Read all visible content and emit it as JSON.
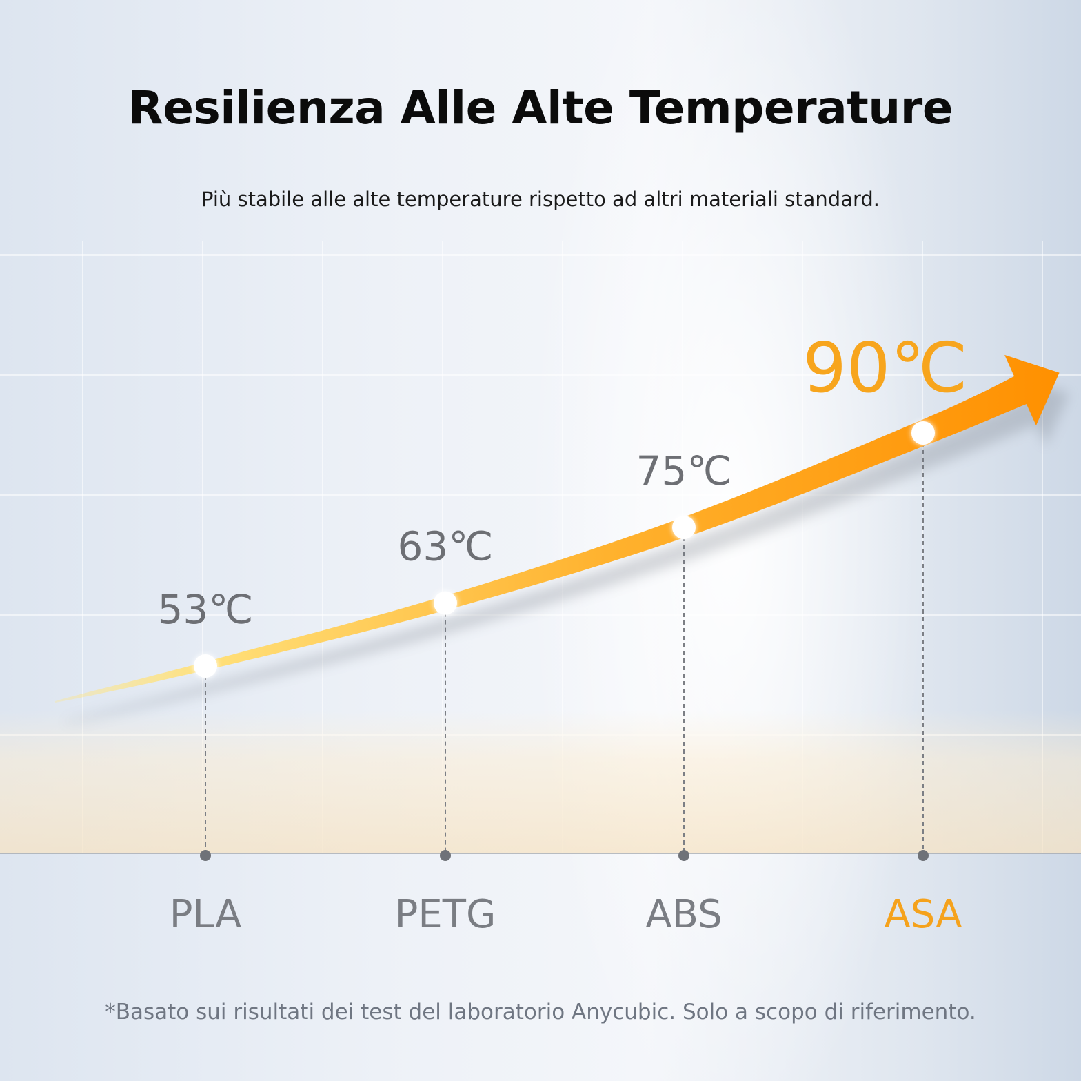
{
  "header": {
    "title": "Resilienza Alle Alte Temperature",
    "subtitle": "Più stabile alle alte temperature rispetto ad altri materiali standard."
  },
  "footer": {
    "note": "*Basato sui risultati dei test del laboratorio Anycubic. Solo a scopo di riferimento."
  },
  "colors": {
    "accent": "#f7a51d",
    "arrow_start": "#ffe680",
    "arrow_end": "#ff9000",
    "label_gray": "#6d6f74",
    "axis_gray": "#8a8d92"
  },
  "chart_data": {
    "type": "line",
    "categories": [
      "PLA",
      "PETG",
      "ABS",
      "ASA"
    ],
    "values": [
      53,
      63,
      75,
      90
    ],
    "value_labels": [
      "53℃",
      "63℃",
      "75℃",
      "90℃"
    ],
    "highlight_index": 3,
    "unit": "℃",
    "grid": true
  }
}
